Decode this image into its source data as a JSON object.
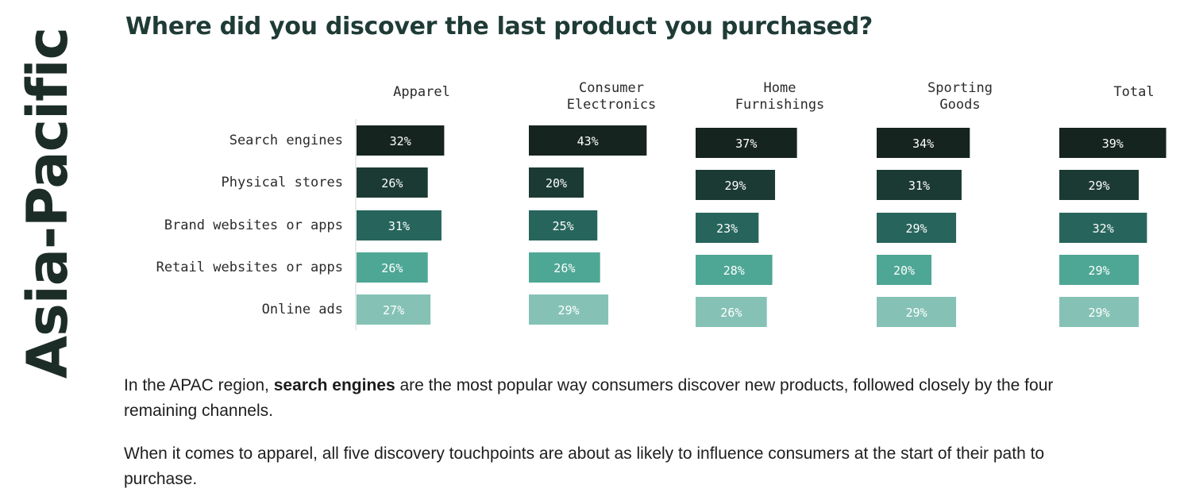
{
  "side_title": "Asia-Pacific",
  "headline": "Where did you discover the last product you purchased?",
  "chart_data": {
    "type": "bar",
    "orientation": "horizontal",
    "title": "Where did you discover the last product you purchased?",
    "categories": [
      "Search engines",
      "Physical stores",
      "Brand websites or apps",
      "Retail websites or apps",
      "Online ads"
    ],
    "panels": [
      {
        "name": "Apparel",
        "values": [
          32,
          26,
          31,
          26,
          27
        ]
      },
      {
        "name": "Consumer Electronics",
        "values": [
          43,
          20,
          25,
          26,
          29
        ]
      },
      {
        "name": "Home Furnishings",
        "values": [
          37,
          29,
          23,
          28,
          26
        ]
      },
      {
        "name": "Sporting Goods",
        "values": [
          34,
          31,
          29,
          20,
          29
        ]
      },
      {
        "name": "Total",
        "values": [
          39,
          29,
          32,
          29,
          29
        ]
      }
    ],
    "unit": "%",
    "category_colors": [
      "#16241f",
      "#1c3a34",
      "#27655c",
      "#4ea795",
      "#85c2b5"
    ]
  },
  "paragraphs": {
    "p1_pre": "In the APAC region, ",
    "p1_bold": "search engines",
    "p1_post": " are the most popular way consumers discover new products, followed closely by the four remaining channels.",
    "p2": "When it comes to apparel, all five discovery touchpoints are about as likely to influence consumers at the start of their path to purchase."
  }
}
